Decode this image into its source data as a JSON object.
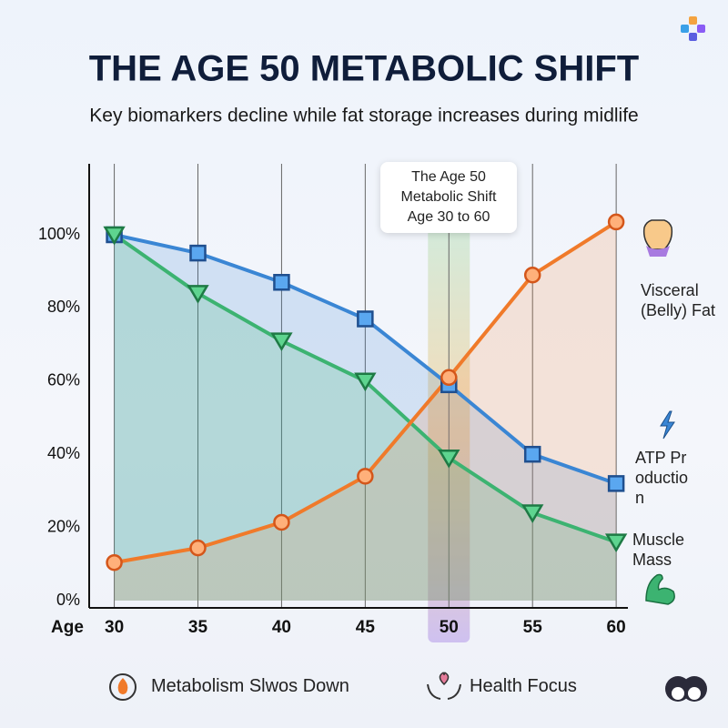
{
  "chart_data": {
    "type": "line",
    "title": "THE AGE 50 METABOLIC SHIFT",
    "subtitle": "Key biomarkers decline while fat storage increases during midlife",
    "x_label": "Age",
    "x": [
      30,
      35,
      40,
      45,
      50,
      55,
      60
    ],
    "xlim": [
      28.5,
      60.7
    ],
    "xticks": [
      30,
      35,
      40,
      45,
      50,
      55,
      60
    ],
    "ylim": [
      0,
      119
    ],
    "yticks": [
      {
        "value": 0,
        "label": "0%"
      },
      {
        "value": 20,
        "label": "20%"
      },
      {
        "value": 40,
        "label": "40%"
      },
      {
        "value": 60,
        "label": "60%"
      },
      {
        "value": 80,
        "label": "80%"
      },
      {
        "value": 100,
        "label": "100%"
      }
    ],
    "grid": true,
    "annotation": [
      "The Age 50",
      "Metabolic Shift",
      "Age 30 to 60"
    ],
    "series": [
      {
        "name": "ATP Production",
        "color": "#3a86d4",
        "marker": "square",
        "values": [
          100,
          95,
          87,
          77,
          59,
          40,
          32
        ]
      },
      {
        "name": "Muscle Mass",
        "color": "#3cb371",
        "marker": "triangle",
        "values": [
          100,
          84,
          71,
          60,
          39,
          24,
          16
        ]
      },
      {
        "name": "Visceral (Belly) Fat",
        "color": "#f07a2a",
        "marker": "circle",
        "values": [
          10.4,
          14.4,
          21.4,
          34,
          61,
          89,
          103.5
        ]
      }
    ],
    "footer": [
      "Metabolism Slwos Down",
      "Health Focus"
    ]
  }
}
